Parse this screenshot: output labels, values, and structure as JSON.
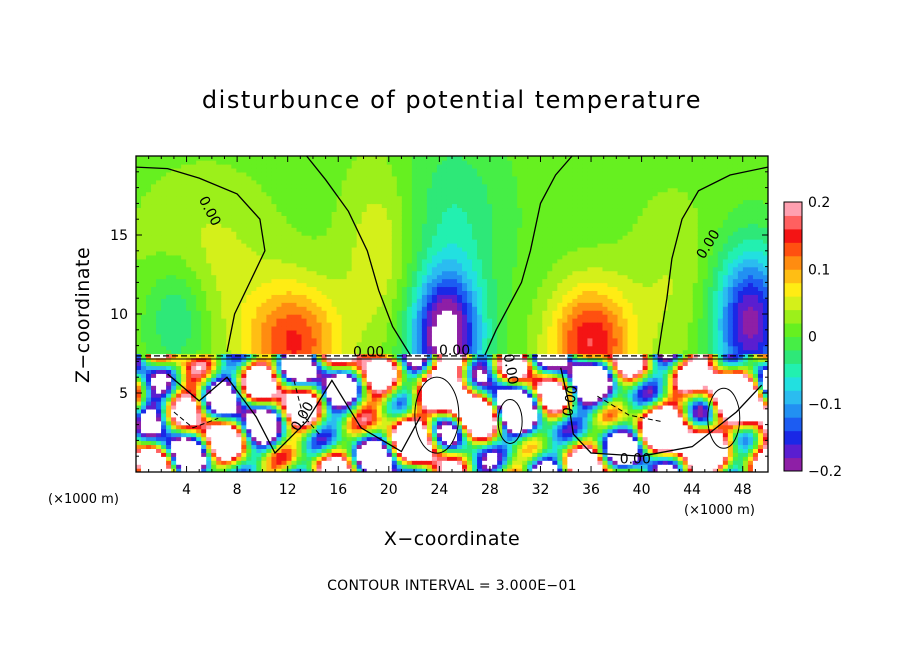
{
  "chart_data": {
    "type": "heatmap",
    "title": "disturbunce of potential temperature",
    "xlabel": "X−coordinate",
    "ylabel": "Z−coordinate",
    "x_unit_label_left": "(×1000 m)",
    "x_unit_label_right": "(×1000 m)",
    "xlim": [
      0,
      50
    ],
    "ylim": [
      0,
      20
    ],
    "x_ticks": [
      4,
      8,
      12,
      16,
      20,
      24,
      28,
      32,
      36,
      40,
      44,
      48
    ],
    "x_tick_labels": [
      "4",
      "8",
      "12",
      "16",
      "20",
      "24",
      "28",
      "32",
      "36",
      "40",
      "44",
      "48"
    ],
    "y_ticks": [
      5,
      10,
      15
    ],
    "y_tick_labels": [
      "5",
      "10",
      "15"
    ],
    "colorbar": {
      "range": [
        -0.2,
        0.2
      ],
      "tick_values": [
        0.2,
        0.1,
        0,
        -0.1,
        -0.2
      ],
      "tick_labels": [
        "0.2",
        "0.1",
        "0",
        "−0.1",
        "−0.2"
      ],
      "colors": [
        "#8e1fa6",
        "#5a1ed0",
        "#1a28e6",
        "#1c5cf2",
        "#2290f2",
        "#2bbcf0",
        "#22e0e0",
        "#22f0b0",
        "#2ee878",
        "#46ee46",
        "#66f020",
        "#9cf01a",
        "#d4f01a",
        "#ffec14",
        "#ffbe14",
        "#ff8c10",
        "#ff5010",
        "#f41414",
        "#ff6060",
        "#ffa0b0"
      ]
    },
    "contour_labels": [
      "0.00",
      "0.00",
      "0.00",
      "0.00",
      "0.00",
      "0.00",
      "0.00",
      "0.00"
    ],
    "footnote": "CONTOUR INTERVAL = 3.000E−01",
    "grid": false
  }
}
